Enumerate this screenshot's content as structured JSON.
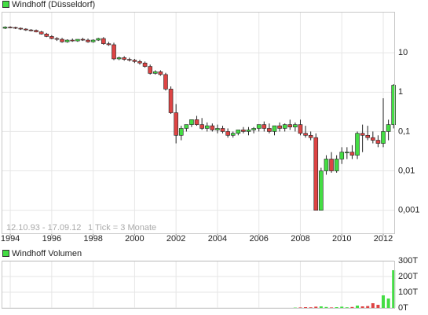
{
  "chart_data": [
    {
      "type": "candlestick",
      "title": "Windhoff (Düsseldorf)",
      "annotations": [
        "12.10.93 - 17.09.12",
        "1 Tick = 3 Monate"
      ],
      "color_up": "#44dd44",
      "color_down": "#dd4444",
      "log_scale": true,
      "grid": true,
      "x": [
        1993.75,
        1994,
        1994.25,
        1994.5,
        1994.75,
        1995,
        1995.25,
        1995.5,
        1995.75,
        1996,
        1996.25,
        1996.5,
        1996.75,
        1997,
        1997.25,
        1997.5,
        1997.75,
        1998,
        1998.25,
        1998.5,
        1998.75,
        1999,
        1999.25,
        1999.5,
        1999.75,
        2000,
        2000.25,
        2000.5,
        2000.75,
        2001,
        2001.25,
        2001.5,
        2001.75,
        2002,
        2002.25,
        2002.5,
        2002.75,
        2003,
        2003.25,
        2003.5,
        2003.75,
        2004,
        2004.25,
        2004.5,
        2004.75,
        2005,
        2005.25,
        2005.5,
        2005.75,
        2006,
        2006.25,
        2006.5,
        2006.75,
        2007,
        2007.25,
        2007.5,
        2007.75,
        2008,
        2008.25,
        2008.5,
        2008.75,
        2009,
        2009.25,
        2009.5,
        2009.75,
        2010,
        2010.25,
        2010.5,
        2010.75,
        2011,
        2011.25,
        2011.5,
        2011.75,
        2012,
        2012.25,
        2012.5
      ],
      "open": [
        42,
        45,
        44,
        42,
        40,
        38,
        37,
        34,
        30,
        26,
        23,
        22,
        19,
        21,
        20,
        22,
        21,
        19,
        21,
        23,
        17,
        16,
        7,
        7.5,
        6.8,
        6.5,
        6,
        5.5,
        4.5,
        3,
        3.3,
        2.8,
        1.2,
        0.3,
        0.08,
        0.12,
        0.15,
        0.2,
        0.15,
        0.12,
        0.14,
        0.11,
        0.12,
        0.1,
        0.08,
        0.09,
        0.11,
        0.1,
        0.11,
        0.12,
        0.15,
        0.12,
        0.1,
        0.14,
        0.12,
        0.15,
        0.13,
        0.15,
        0.09,
        0.08,
        0.07,
        0.001,
        0.01,
        0.02,
        0.01,
        0.02,
        0.03,
        0.03,
        0.025,
        0.09,
        0.08,
        0.07,
        0.06,
        0.05,
        0.1,
        0.15
      ],
      "high": [
        47,
        47,
        46,
        44,
        42,
        40,
        39,
        36,
        32,
        28,
        25,
        24,
        22,
        23,
        22,
        24,
        23,
        22,
        24,
        25,
        19,
        18,
        8,
        8.2,
        7.5,
        7,
        6.6,
        6,
        5,
        3.6,
        3.6,
        3.1,
        1.4,
        0.5,
        0.14,
        0.15,
        0.2,
        0.25,
        0.22,
        0.17,
        0.16,
        0.15,
        0.14,
        0.12,
        0.1,
        0.1,
        0.13,
        0.13,
        0.13,
        0.15,
        0.18,
        0.16,
        0.13,
        0.17,
        0.16,
        0.2,
        0.17,
        0.2,
        0.14,
        0.1,
        0.09,
        0.012,
        0.025,
        0.03,
        0.025,
        0.04,
        0.04,
        0.045,
        0.1,
        0.15,
        0.14,
        0.1,
        0.08,
        0.7,
        0.2,
        1.6
      ],
      "low": [
        40,
        42,
        40,
        38,
        36,
        35,
        33,
        29,
        25,
        22,
        20,
        18,
        18,
        19,
        19,
        20,
        18,
        18,
        20,
        16,
        15,
        6.5,
        6.5,
        6.3,
        6,
        5.5,
        5,
        4.2,
        2.8,
        2.8,
        2.6,
        1.1,
        0.28,
        0.05,
        0.06,
        0.1,
        0.13,
        0.14,
        0.11,
        0.1,
        0.1,
        0.09,
        0.09,
        0.07,
        0.07,
        0.08,
        0.09,
        0.08,
        0.09,
        0.1,
        0.1,
        0.09,
        0.08,
        0.1,
        0.1,
        0.11,
        0.1,
        0.08,
        0.07,
        0.06,
        0.001,
        0.001,
        0.008,
        0.009,
        0.009,
        0.015,
        0.02,
        0.02,
        0.02,
        0.03,
        0.06,
        0.05,
        0.04,
        0.04,
        0.06,
        0.12
      ],
      "close": [
        45,
        44,
        42,
        40,
        38,
        37,
        34,
        30,
        26,
        23,
        22,
        19,
        21,
        20,
        22,
        21,
        19,
        21,
        23,
        17,
        16,
        7,
        7.5,
        6.8,
        6.5,
        6,
        5.5,
        4.5,
        3,
        3.3,
        2.8,
        1.2,
        0.3,
        0.08,
        0.12,
        0.15,
        0.2,
        0.15,
        0.12,
        0.14,
        0.11,
        0.12,
        0.1,
        0.08,
        0.09,
        0.11,
        0.1,
        0.11,
        0.12,
        0.15,
        0.12,
        0.1,
        0.14,
        0.12,
        0.15,
        0.13,
        0.15,
        0.09,
        0.08,
        0.07,
        0.001,
        0.01,
        0.02,
        0.01,
        0.02,
        0.03,
        0.03,
        0.025,
        0.09,
        0.08,
        0.07,
        0.06,
        0.05,
        0.1,
        0.15,
        1.5
      ],
      "xlim": [
        1993.58,
        2012.53
      ],
      "xticks": [
        1994,
        1996,
        1998,
        2000,
        2002,
        2004,
        2006,
        2008,
        2010,
        2012
      ],
      "ylim": [
        0.00026,
        110
      ],
      "yticks": [
        10,
        1,
        {
          "value": 0.1,
          "label": "0,1"
        },
        {
          "value": 0.01,
          "label": "0,01"
        },
        {
          "value": 0.001,
          "label": "0,001"
        }
      ]
    },
    {
      "type": "bar",
      "title": "Windhoff Volumen",
      "color_up": "#44dd44",
      "color_down": "#dd4444",
      "grid": true,
      "x": [
        1993.75,
        1994,
        1994.25,
        1994.5,
        1994.75,
        1995,
        1995.25,
        1995.5,
        1995.75,
        1996,
        1996.25,
        1996.5,
        1996.75,
        1997,
        1997.25,
        1997.5,
        1997.75,
        1998,
        1998.25,
        1998.5,
        1998.75,
        1999,
        1999.25,
        1999.5,
        1999.75,
        2000,
        2000.25,
        2000.5,
        2000.75,
        2001,
        2001.25,
        2001.5,
        2001.75,
        2002,
        2002.25,
        2002.5,
        2002.75,
        2003,
        2003.25,
        2003.5,
        2003.75,
        2004,
        2004.25,
        2004.5,
        2004.75,
        2005,
        2005.25,
        2005.5,
        2005.75,
        2006,
        2006.25,
        2006.5,
        2006.75,
        2007,
        2007.25,
        2007.5,
        2007.75,
        2008,
        2008.25,
        2008.5,
        2008.75,
        2009,
        2009.25,
        2009.5,
        2009.75,
        2010,
        2010.25,
        2010.5,
        2010.75,
        2011,
        2011.25,
        2011.5,
        2011.75,
        2012,
        2012.25,
        2012.5
      ],
      "values": [
        0,
        0,
        0,
        0,
        0,
        0,
        0,
        0,
        0,
        0,
        0,
        0,
        0,
        0,
        0,
        0,
        0,
        0,
        0,
        0,
        0,
        0,
        0,
        0,
        0,
        0,
        0,
        0,
        0,
        0,
        0,
        0,
        0,
        0,
        0,
        0,
        0,
        0,
        0,
        0,
        0,
        0,
        0,
        0,
        0,
        0,
        0,
        0,
        0,
        0,
        0,
        0,
        0,
        0,
        0,
        0,
        2000,
        3000,
        5000,
        4000,
        8000,
        10000,
        6000,
        3000,
        5000,
        8000,
        4000,
        6000,
        15000,
        10000,
        12000,
        30000,
        20000,
        80000,
        60000,
        240000
      ],
      "xlim": [
        1993.58,
        2012.53
      ],
      "ylim": [
        0,
        300000
      ],
      "yticks": [
        {
          "value": 300000,
          "label": "300T"
        },
        {
          "value": 200000,
          "label": "200T"
        },
        {
          "value": 100000,
          "label": "100T"
        },
        {
          "value": 0,
          "label": "0T"
        }
      ]
    }
  ]
}
